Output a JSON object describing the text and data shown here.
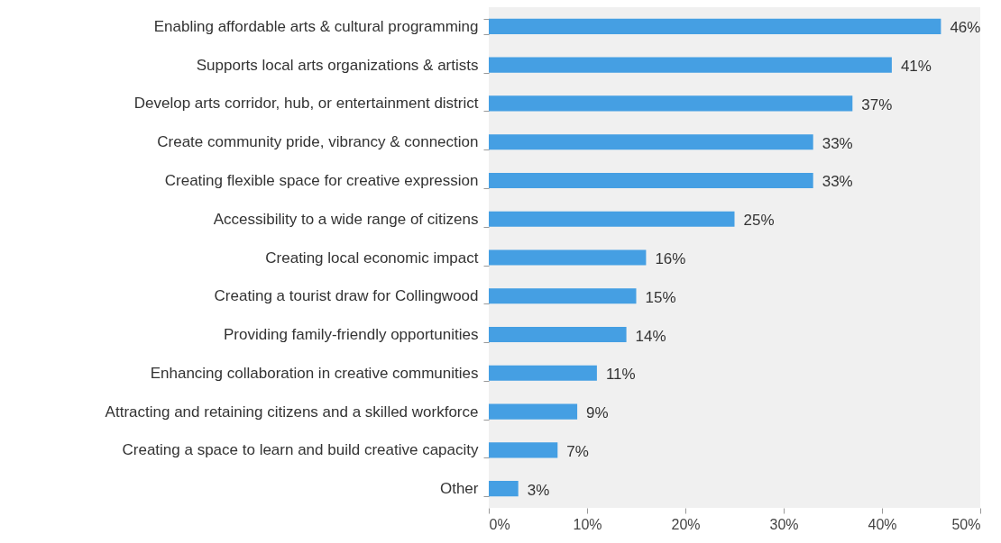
{
  "chart_data": {
    "type": "bar",
    "orientation": "horizontal",
    "categories": [
      "Enabling affordable arts & cultural programming",
      "Supports local arts organizations & artists",
      "Develop arts corridor, hub, or entertainment district",
      "Create community pride, vibrancy & connection",
      "Creating flexible space for creative expression",
      "Accessibility to a wide range of citizens",
      "Creating local economic impact",
      "Creating a tourist draw for Collingwood",
      "Providing family-friendly opportunities",
      "Enhancing collaboration in creative communities",
      "Attracting and retaining citizens and a skilled workforce",
      "Creating a space to learn and build creative capacity",
      "Other"
    ],
    "values": [
      46,
      41,
      37,
      33,
      33,
      25,
      16,
      15,
      14,
      11,
      9,
      7,
      3
    ],
    "value_labels": [
      "46%",
      "41%",
      "37%",
      "33%",
      "33%",
      "25%",
      "16%",
      "15%",
      "14%",
      "11%",
      "9%",
      "7%",
      "3%"
    ],
    "color": "#459fe3",
    "xlim": [
      0,
      50
    ],
    "xticks": [
      {
        "value": 0,
        "label": "0%"
      },
      {
        "value": 10,
        "label": "10%"
      },
      {
        "value": 20,
        "label": "20%"
      },
      {
        "value": 30,
        "label": "30%"
      },
      {
        "value": 40,
        "label": "40%"
      },
      {
        "value": 50,
        "label": "50%"
      }
    ],
    "grid": false
  }
}
